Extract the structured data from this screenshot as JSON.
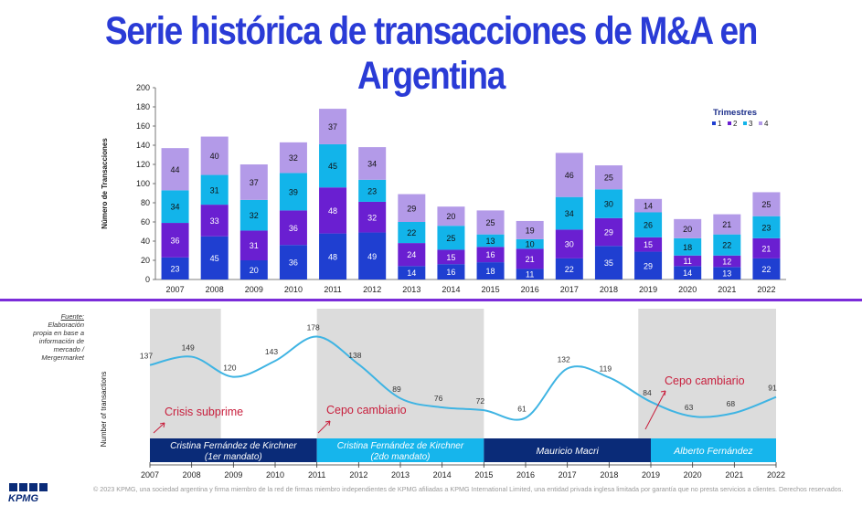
{
  "title": "Serie histórica de transacciones de M&A en Argentina",
  "chart_data": [
    {
      "type": "bar",
      "stacked": true,
      "categories": [
        "2007",
        "2008",
        "2009",
        "2010",
        "2011",
        "2012",
        "2013",
        "2014",
        "2015",
        "2016",
        "2017",
        "2018",
        "2019",
        "2020",
        "2021",
        "2022"
      ],
      "ylabel": "Número de Transacciones",
      "ylim": [
        0,
        200
      ],
      "yticks": [
        0,
        20,
        40,
        60,
        80,
        100,
        120,
        140,
        160,
        180,
        200
      ],
      "legend_title": "Trimestres",
      "legend_position": "top-right",
      "series": [
        {
          "name": "1",
          "color": "#1f3fd1",
          "values": [
            23,
            45,
            20,
            36,
            48,
            49,
            14,
            16,
            18,
            11,
            22,
            35,
            29,
            14,
            13,
            22
          ]
        },
        {
          "name": "2",
          "color": "#6a1fd1",
          "values": [
            36,
            33,
            31,
            36,
            48,
            32,
            24,
            15,
            16,
            21,
            30,
            29,
            15,
            11,
            12,
            21
          ]
        },
        {
          "name": "3",
          "color": "#12b4ea",
          "values": [
            34,
            31,
            32,
            39,
            45,
            23,
            22,
            25,
            13,
            10,
            34,
            30,
            26,
            18,
            22,
            23
          ]
        },
        {
          "name": "4",
          "color": "#b39ae8",
          "values": [
            44,
            40,
            37,
            32,
            37,
            34,
            29,
            20,
            25,
            19,
            46,
            25,
            14,
            20,
            21,
            25
          ]
        }
      ]
    },
    {
      "type": "line",
      "x": [
        "2007",
        "2008",
        "2009",
        "2010",
        "2011",
        "2012",
        "2013",
        "2014",
        "2015",
        "2016",
        "2017",
        "2018",
        "2019",
        "2020",
        "2021",
        "2022"
      ],
      "values": [
        137,
        149,
        120,
        143,
        178,
        138,
        89,
        76,
        72,
        61,
        132,
        119,
        84,
        63,
        68,
        91
      ],
      "ylabel": "Number of transactions",
      "line_color": "#3fb4e3",
      "annotations": [
        {
          "text": "Crisis subprime",
          "color": "#c81e3c"
        },
        {
          "text": "Cepo cambiario",
          "color": "#c81e3c"
        },
        {
          "text": "Cepo cambiario",
          "color": "#c81e3c"
        }
      ],
      "shaded_periods": [
        [
          "2007",
          "2008.7"
        ],
        [
          "2011",
          "2015"
        ],
        [
          "2018.7",
          "2022"
        ]
      ],
      "mandates": [
        {
          "label_line1": "Cristina Fernández de Kirchner",
          "label_line2": "(1er mandato)",
          "color": "#0a2b78"
        },
        {
          "label_line1": "Cristina Fernández de Kirchner",
          "label_line2": "(2do mandato)",
          "color": "#16b5ec"
        },
        {
          "label_line1": "Mauricio Macri",
          "label_line2": "",
          "color": "#0a2b78"
        },
        {
          "label_line1": "Alberto Fernández",
          "label_line2": "",
          "color": "#16b5ec"
        }
      ]
    }
  ],
  "source": {
    "header": "Fuente:",
    "text": "Elaboración propia en base a información de mercado / Mergermarket"
  },
  "footer": "© 2023 KPMG, una sociedad argentina y firma miembro de la red de firmas miembro independientes de KPMG afiliadas a KPMG International Limited, una entidad privada inglesa limitada por garantía que no presta servicios a clientes. Derechos reservados.",
  "logo": "KPMG",
  "colors": {
    "title": "#2a3bd6",
    "divider": "#7b2cd9",
    "logo": "#0a2b78"
  }
}
